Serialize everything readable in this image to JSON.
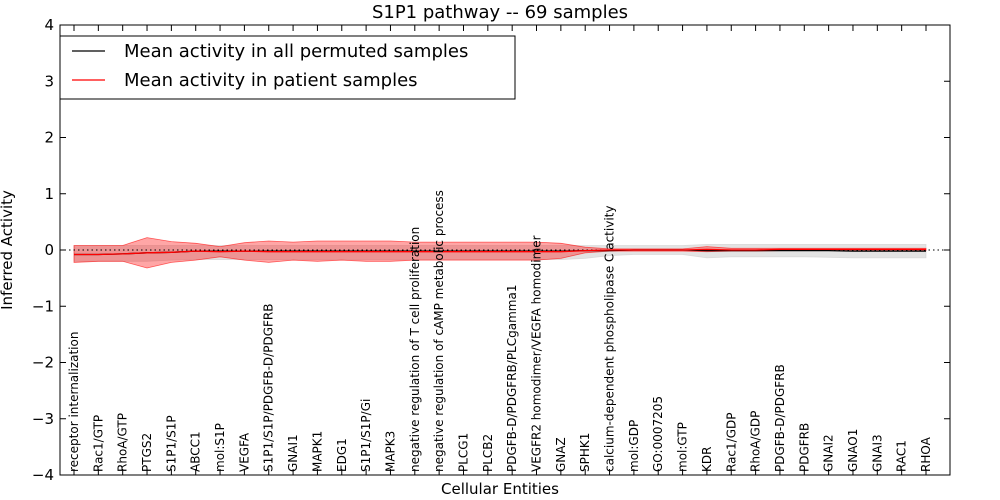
{
  "chart_data": {
    "type": "line",
    "title": "S1P1 pathway -- 69 samples",
    "xlabel": "Cellular Entities",
    "ylabel": "Inferred Activity",
    "ylim": [
      -4,
      4
    ],
    "yticks": [
      "4",
      "3",
      "2",
      "1",
      "0",
      "−1",
      "−2",
      "−3",
      "−4"
    ],
    "ytick_values": [
      4,
      3,
      2,
      1,
      0,
      -1,
      -2,
      -3,
      -4
    ],
    "categories": [
      "receptor internalization",
      "Rac1/GTP",
      "RhoA/GTP",
      "PTGS2",
      "S1P1/S1P",
      "ABCC1",
      "mol:S1P",
      "VEGFA",
      "S1P1/S1P/PDGFB-D/PDGFRB",
      "GNAI1",
      "MAPK1",
      "EDG1",
      "S1P1/S1P/Gi",
      "MAPK3",
      "negative regulation of T cell proliferation",
      "negative regulation of cAMP metabolic process",
      "PLCG1",
      "PLCB2",
      "PDGFB-D/PDGFRB/PLCgamma1",
      "VEGFR2 homodimer/VEGFA homodimer",
      "GNAZ",
      "SPHK1",
      "calcium-dependent phospholipase C activity",
      "mol:GDP",
      "GO:0007205",
      "mol:GTP",
      "KDR",
      "Rac1/GDP",
      "RhoA/GDP",
      "PDGFB-D/PDGFRB",
      "PDGFRB",
      "GNAI2",
      "GNAO1",
      "GNAI3",
      "RAC1",
      "RHOA"
    ],
    "label_placement": [
      "bottom",
      "bottom",
      "bottom",
      "bottom",
      "bottom",
      "bottom",
      "bottom",
      "bottom",
      "top",
      "bottom",
      "bottom",
      "bottom",
      "bottom",
      "bottom",
      "top",
      "top",
      "bottom",
      "bottom",
      "top",
      "top",
      "bottom",
      "bottom",
      "top",
      "bottom",
      "bottom",
      "bottom",
      "bottom",
      "bottom",
      "bottom",
      "bottom",
      "bottom",
      "bottom",
      "bottom",
      "bottom",
      "bottom",
      "bottom"
    ],
    "series": [
      {
        "name": "Mean activity in all permuted samples",
        "color": "#000000",
        "values": [
          -0.08,
          -0.08,
          -0.07,
          -0.05,
          -0.04,
          -0.02,
          -0.02,
          -0.02,
          -0.02,
          -0.02,
          -0.02,
          -0.02,
          -0.02,
          -0.02,
          -0.02,
          -0.02,
          -0.02,
          -0.02,
          -0.02,
          -0.02,
          -0.02,
          -0.01,
          -0.01,
          0.0,
          0.0,
          0.0,
          -0.01,
          -0.01,
          -0.01,
          -0.01,
          -0.01,
          -0.01,
          -0.02,
          -0.02,
          -0.02,
          -0.02
        ],
        "band_lower": [
          -0.2,
          -0.2,
          -0.2,
          -0.2,
          -0.18,
          -0.17,
          -0.17,
          -0.17,
          -0.17,
          -0.17,
          -0.17,
          -0.17,
          -0.17,
          -0.17,
          -0.17,
          -0.17,
          -0.17,
          -0.17,
          -0.17,
          -0.17,
          -0.17,
          -0.15,
          -0.1,
          -0.08,
          -0.08,
          -0.08,
          -0.14,
          -0.12,
          -0.12,
          -0.12,
          -0.12,
          -0.13,
          -0.14,
          -0.14,
          -0.14,
          -0.14
        ],
        "band_upper": [
          0.08,
          0.08,
          0.08,
          0.08,
          0.08,
          0.08,
          0.08,
          0.08,
          0.08,
          0.08,
          0.08,
          0.08,
          0.08,
          0.08,
          0.08,
          0.08,
          0.08,
          0.08,
          0.08,
          0.08,
          0.08,
          0.08,
          0.08,
          0.08,
          0.08,
          0.08,
          0.1,
          0.1,
          0.1,
          0.1,
          0.1,
          0.1,
          0.1,
          0.1,
          0.1,
          0.1
        ],
        "band_color": "#cccccc"
      },
      {
        "name": "Mean activity in patient samples",
        "color": "#ff0000",
        "values": [
          -0.08,
          -0.08,
          -0.07,
          -0.05,
          -0.04,
          -0.02,
          -0.03,
          -0.02,
          -0.03,
          -0.03,
          -0.03,
          -0.03,
          -0.03,
          -0.03,
          -0.03,
          -0.03,
          -0.03,
          -0.03,
          -0.03,
          -0.03,
          -0.03,
          -0.01,
          0.0,
          0.0,
          0.0,
          0.0,
          0.01,
          0.0,
          0.0,
          0.01,
          0.01,
          0.01,
          0.01,
          0.01,
          0.01,
          0.01
        ],
        "band_lower": [
          -0.22,
          -0.2,
          -0.2,
          -0.32,
          -0.22,
          -0.18,
          -0.12,
          -0.18,
          -0.22,
          -0.18,
          -0.2,
          -0.18,
          -0.2,
          -0.2,
          -0.18,
          -0.18,
          -0.18,
          -0.18,
          -0.18,
          -0.18,
          -0.15,
          -0.05,
          -0.02,
          -0.02,
          -0.02,
          -0.02,
          -0.03,
          -0.02,
          -0.02,
          -0.01,
          -0.01,
          -0.01,
          -0.01,
          -0.01,
          -0.01,
          -0.01
        ],
        "band_upper": [
          0.08,
          0.08,
          0.08,
          0.22,
          0.15,
          0.12,
          0.06,
          0.13,
          0.16,
          0.14,
          0.16,
          0.16,
          0.16,
          0.16,
          0.14,
          0.14,
          0.14,
          0.14,
          0.14,
          0.14,
          0.12,
          0.05,
          0.02,
          0.02,
          0.02,
          0.02,
          0.06,
          0.03,
          0.03,
          0.03,
          0.03,
          0.03,
          0.03,
          0.03,
          0.03,
          0.03
        ],
        "band_color": "#ff0000"
      }
    ],
    "baseline": 0,
    "legend": "top-left",
    "grid": false
  }
}
